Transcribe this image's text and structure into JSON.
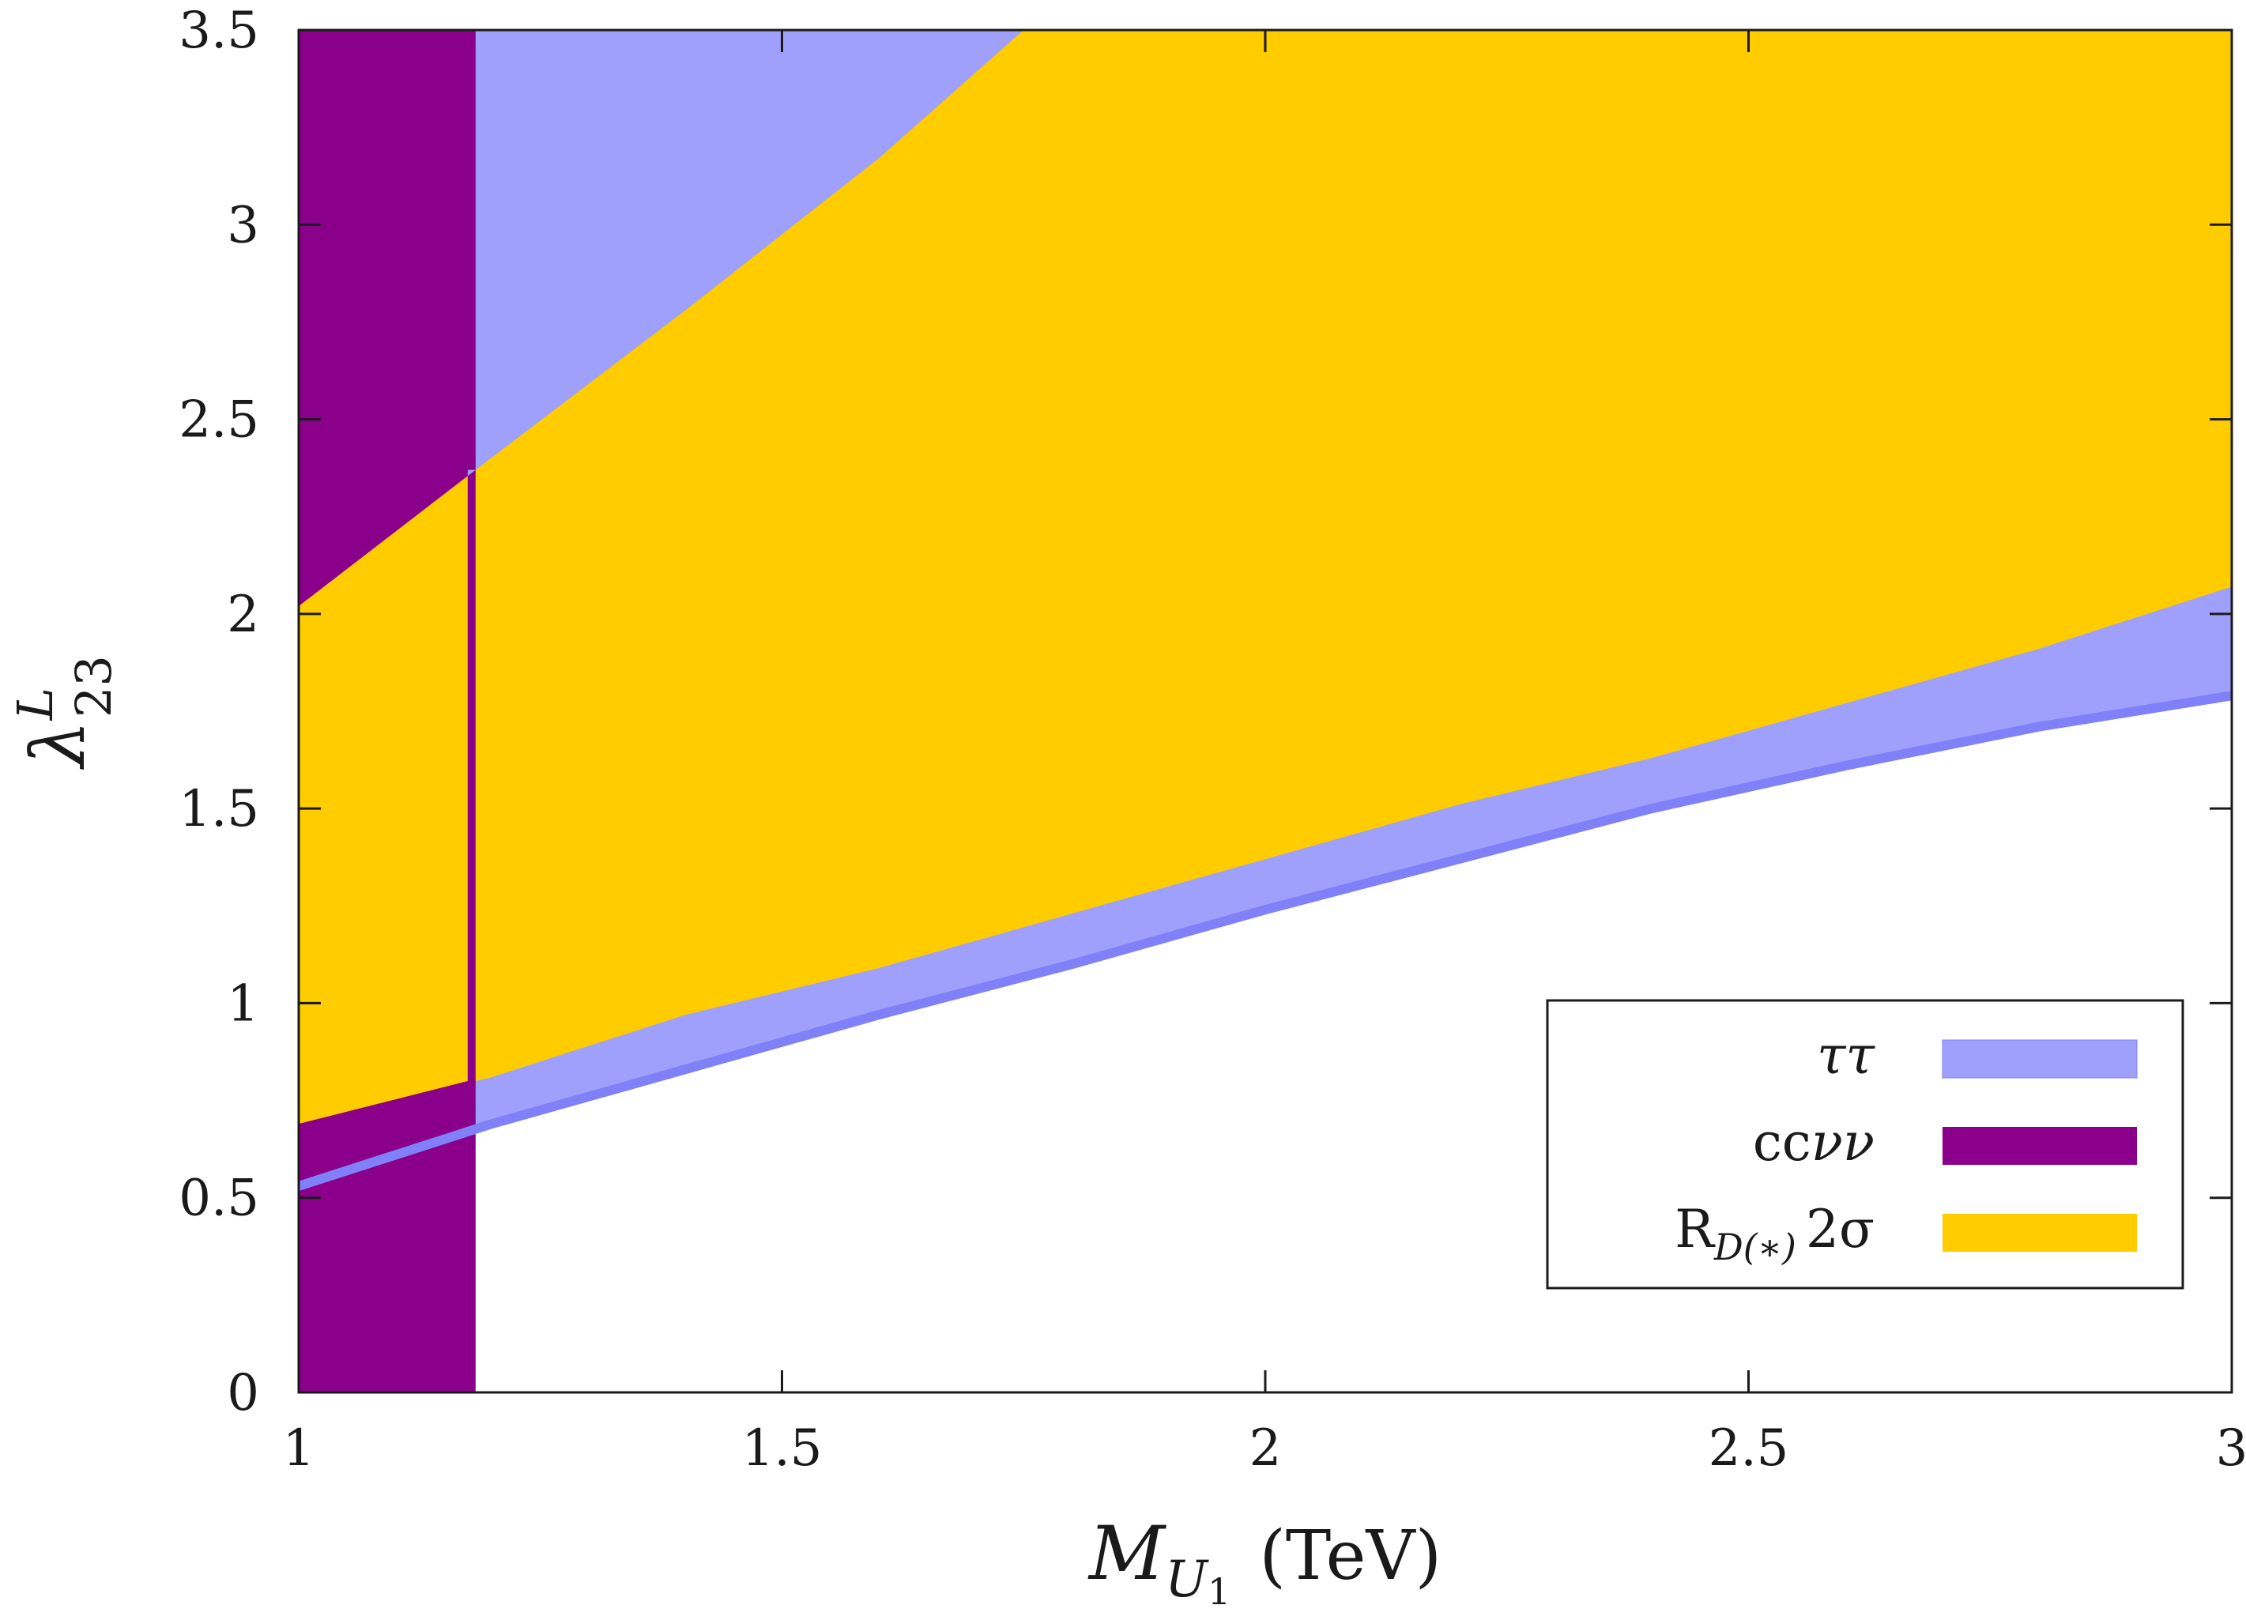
{
  "chart_data": {
    "type": "area",
    "title": "",
    "xlabel": {
      "var": "M",
      "sub": "U",
      "subsub": "1",
      "unit": "(TeV)"
    },
    "ylabel": {
      "var": "λ",
      "sup": "L",
      "sub": "23"
    },
    "xlim": [
      1,
      3
    ],
    "ylim": [
      0,
      3.5
    ],
    "x_ticks": [
      1,
      1.5,
      2,
      2.5,
      3
    ],
    "x_tick_labels": [
      "1",
      "1.5",
      "2",
      "2.5",
      "3"
    ],
    "y_ticks": [
      0,
      0.5,
      1,
      1.5,
      2,
      2.5,
      3,
      3.5
    ],
    "y_tick_labels": [
      "0",
      "0.5",
      "1",
      "1.5",
      "2",
      "2.5",
      "3",
      "3.5"
    ],
    "grid": false,
    "legend_position": "bottom-right",
    "colors": {
      "tautau": "#9fa0fb",
      "tautau_line": "#8080f8",
      "ccnunu": "#8b008b",
      "rd": "#ffcc00",
      "axis": "#1a1a1a"
    },
    "series": [
      {
        "name": "ττ",
        "legend": "ττ",
        "kind": "band_above_curve",
        "lower_boundary": {
          "x": [
            1.0,
            1.2,
            1.4,
            1.6,
            1.8,
            2.0,
            2.2,
            2.4,
            2.6,
            2.8,
            3.0
          ],
          "y": [
            0.53,
            0.69,
            0.83,
            0.97,
            1.1,
            1.24,
            1.37,
            1.5,
            1.61,
            1.71,
            1.79
          ]
        }
      },
      {
        "name": "ccνν",
        "legend_main": "cc",
        "legend_greek": "νν",
        "kind": "excluded_region",
        "x_exclusion_max": 1.183,
        "y_upper_boundary": {
          "x": [
            1.0,
            1.183
          ],
          "y": [
            2.02,
            2.37
          ]
        }
      },
      {
        "name": "R_D(*) 2σ",
        "legend_main": "R",
        "legend_sub": "D(∗)",
        "legend_tail": "2σ",
        "kind": "band",
        "lower_boundary": {
          "x": [
            1.0,
            1.2,
            1.4,
            1.6,
            1.8,
            2.0,
            2.2,
            2.4,
            2.6,
            2.8,
            3.0
          ],
          "y": [
            0.69,
            0.81,
            0.97,
            1.09,
            1.23,
            1.37,
            1.51,
            1.63,
            1.77,
            1.91,
            2.07
          ]
        },
        "upper_boundary": {
          "x": [
            1.0,
            1.183,
            1.4,
            1.6,
            1.75
          ],
          "y": [
            2.02,
            2.37,
            2.78,
            3.17,
            3.5
          ]
        }
      }
    ]
  }
}
